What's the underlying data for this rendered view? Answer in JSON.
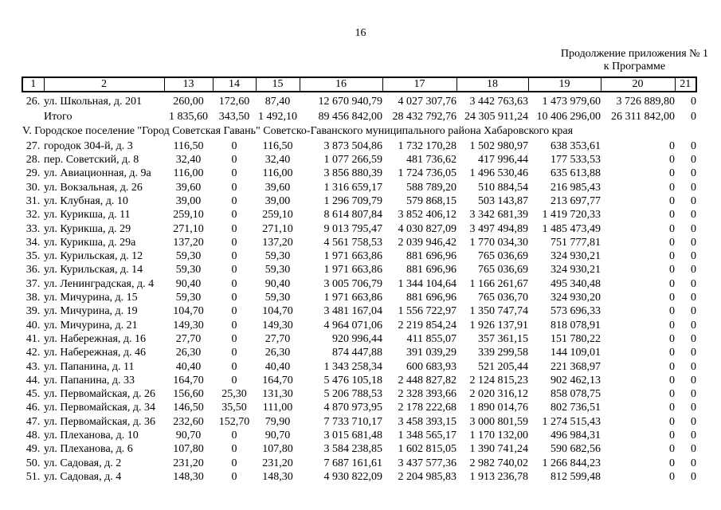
{
  "page": {
    "number": "16",
    "continuation": {
      "line1": "Продолжение приложения № 1",
      "line2": "к Программе"
    }
  },
  "table": {
    "columns": [
      "1",
      "2",
      "13",
      "14",
      "15",
      "16",
      "17",
      "18",
      "19",
      "20",
      "21"
    ],
    "rows": [
      {
        "type": "data",
        "num": "26.",
        "address": "ул. Школьная, д. 201",
        "values": [
          "260,00",
          "172,60",
          "87,40",
          "12 670 940,79",
          "4 027 307,76",
          "3 442 763,63",
          "1 473 979,60",
          "3 726 889,80",
          "0"
        ]
      },
      {
        "type": "total",
        "num": "",
        "address": "Итого",
        "values": [
          "1 835,60",
          "343,50",
          "1 492,10",
          "89 456 842,00",
          "28 432 792,76",
          "24 305 911,24",
          "10 406 296,00",
          "26 311 842,00",
          "0"
        ]
      },
      {
        "type": "section",
        "text": "V. Городское поселение \"Город Советская Гавань\" Советско-Гаванского муниципального района Хабаровского края"
      },
      {
        "type": "data",
        "num": "27.",
        "address": "городок 304-й, д. 3",
        "values": [
          "116,50",
          "0",
          "116,50",
          "3 873 504,86",
          "1 732 170,28",
          "1 502 980,97",
          "638 353,61",
          "0",
          "0"
        ]
      },
      {
        "type": "data",
        "num": "28.",
        "address": "пер. Советский, д. 8",
        "values": [
          "32,40",
          "0",
          "32,40",
          "1 077 266,59",
          "481 736,62",
          "417 996,44",
          "177 533,53",
          "0",
          "0"
        ]
      },
      {
        "type": "data",
        "num": "29.",
        "address": "ул. Авиационная, д. 9а",
        "values": [
          "116,00",
          "0",
          "116,00",
          "3 856 880,39",
          "1 724 736,05",
          "1 496 530,46",
          "635 613,88",
          "0",
          "0"
        ]
      },
      {
        "type": "data",
        "num": "30.",
        "address": "ул. Вокзальная, д. 26",
        "values": [
          "39,60",
          "0",
          "39,60",
          "1 316 659,17",
          "588 789,20",
          "510 884,54",
          "216 985,43",
          "0",
          "0"
        ]
      },
      {
        "type": "data",
        "num": "31.",
        "address": "ул. Клубная, д. 10",
        "values": [
          "39,00",
          "0",
          "39,00",
          "1 296 709,79",
          "579 868,15",
          "503 143,87",
          "213 697,77",
          "0",
          "0"
        ]
      },
      {
        "type": "data",
        "num": "32.",
        "address": "ул. Курикша, д. 11",
        "values": [
          "259,10",
          "0",
          "259,10",
          "8 614 807,84",
          "3 852 406,12",
          "3 342 681,39",
          "1 419 720,33",
          "0",
          "0"
        ]
      },
      {
        "type": "data",
        "num": "33.",
        "address": "ул. Курикша, д. 29",
        "values": [
          "271,10",
          "0",
          "271,10",
          "9 013 795,47",
          "4 030 827,09",
          "3 497 494,89",
          "1 485 473,49",
          "0",
          "0"
        ]
      },
      {
        "type": "data",
        "num": "34.",
        "address": "ул. Курикша, д. 29а",
        "values": [
          "137,20",
          "0",
          "137,20",
          "4 561 758,53",
          "2 039 946,42",
          "1 770 034,30",
          "751 777,81",
          "0",
          "0"
        ]
      },
      {
        "type": "data",
        "num": "35.",
        "address": "ул. Курильская, д. 12",
        "values": [
          "59,30",
          "0",
          "59,30",
          "1 971 663,86",
          "881 696,96",
          "765 036,69",
          "324 930,21",
          "0",
          "0"
        ]
      },
      {
        "type": "data",
        "num": "36.",
        "address": "ул. Курильская, д. 14",
        "values": [
          "59,30",
          "0",
          "59,30",
          "1 971 663,86",
          "881 696,96",
          "765 036,69",
          "324 930,21",
          "0",
          "0"
        ]
      },
      {
        "type": "data",
        "num": "37.",
        "address": "ул. Ленинградская, д. 4",
        "values": [
          "90,40",
          "0",
          "90,40",
          "3 005 706,79",
          "1 344 104,64",
          "1 166 261,67",
          "495 340,48",
          "0",
          "0"
        ]
      },
      {
        "type": "data",
        "num": "38.",
        "address": "ул. Мичурина, д. 15",
        "values": [
          "59,30",
          "0",
          "59,30",
          "1 971 663,86",
          "881 696,96",
          "765 036,70",
          "324 930,20",
          "0",
          "0"
        ]
      },
      {
        "type": "data",
        "num": "39.",
        "address": "ул. Мичурина, д. 19",
        "values": [
          "104,70",
          "0",
          "104,70",
          "3 481 167,04",
          "1 556 722,97",
          "1 350 747,74",
          "573 696,33",
          "0",
          "0"
        ]
      },
      {
        "type": "data",
        "num": "40.",
        "address": "ул. Мичурина, д. 21",
        "values": [
          "149,30",
          "0",
          "149,30",
          "4 964 071,06",
          "2 219 854,24",
          "1 926 137,91",
          "818 078,91",
          "0",
          "0"
        ]
      },
      {
        "type": "data",
        "num": "41.",
        "address": "ул. Набережная, д. 16",
        "values": [
          "27,70",
          "0",
          "27,70",
          "920 996,44",
          "411 855,07",
          "357 361,15",
          "151 780,22",
          "0",
          "0"
        ]
      },
      {
        "type": "data",
        "num": "42.",
        "address": "ул. Набережная, д. 46",
        "values": [
          "26,30",
          "0",
          "26,30",
          "874 447,88",
          "391 039,29",
          "339 299,58",
          "144 109,01",
          "0",
          "0"
        ]
      },
      {
        "type": "data",
        "num": "43.",
        "address": "ул. Папанина, д. 11",
        "values": [
          "40,40",
          "0",
          "40,40",
          "1 343 258,34",
          "600 683,93",
          "521 205,44",
          "221 368,97",
          "0",
          "0"
        ]
      },
      {
        "type": "data",
        "num": "44.",
        "address": "ул. Папанина, д. 33",
        "values": [
          "164,70",
          "0",
          "164,70",
          "5 476 105,18",
          "2 448 827,82",
          "2 124 815,23",
          "902 462,13",
          "0",
          "0"
        ]
      },
      {
        "type": "data",
        "num": "45.",
        "address": "ул. Первомайская, д. 26",
        "values": [
          "156,60",
          "25,30",
          "131,30",
          "5 206 788,53",
          "2 328 393,66",
          "2 020 316,12",
          "858 078,75",
          "0",
          "0"
        ]
      },
      {
        "type": "data",
        "num": "46.",
        "address": "ул. Первомайская, д. 34",
        "values": [
          "146,50",
          "35,50",
          "111,00",
          "4 870 973,95",
          "2 178 222,68",
          "1 890 014,76",
          "802 736,51",
          "0",
          "0"
        ]
      },
      {
        "type": "data",
        "num": "47.",
        "address": "ул. Первомайская, д. 36",
        "values": [
          "232,60",
          "152,70",
          "79,90",
          "7 733 710,17",
          "3 458 393,15",
          "3 000 801,59",
          "1 274 515,43",
          "0",
          "0"
        ]
      },
      {
        "type": "data",
        "num": "48.",
        "address": "ул. Плеханова, д. 10",
        "values": [
          "90,70",
          "0",
          "90,70",
          "3 015 681,48",
          "1 348 565,17",
          "1 170 132,00",
          "496 984,31",
          "0",
          "0"
        ]
      },
      {
        "type": "data",
        "num": "49.",
        "address": "ул. Плеханова, д. 6",
        "values": [
          "107,80",
          "0",
          "107,80",
          "3 584 238,85",
          "1 602 815,05",
          "1 390 741,24",
          "590 682,56",
          "0",
          "0"
        ]
      },
      {
        "type": "data",
        "num": "50.",
        "address": "ул. Садовая, д. 2",
        "values": [
          "231,20",
          "0",
          "231,20",
          "7 687 161,61",
          "3 437 577,36",
          "2 982 740,02",
          "1 266 844,23",
          "0",
          "0"
        ]
      },
      {
        "type": "data",
        "num": "51.",
        "address": "ул. Садовая, д. 4",
        "values": [
          "148,30",
          "0",
          "148,30",
          "4 930 822,09",
          "2 204 985,83",
          "1 913 236,78",
          "812 599,48",
          "0",
          "0"
        ]
      }
    ]
  }
}
